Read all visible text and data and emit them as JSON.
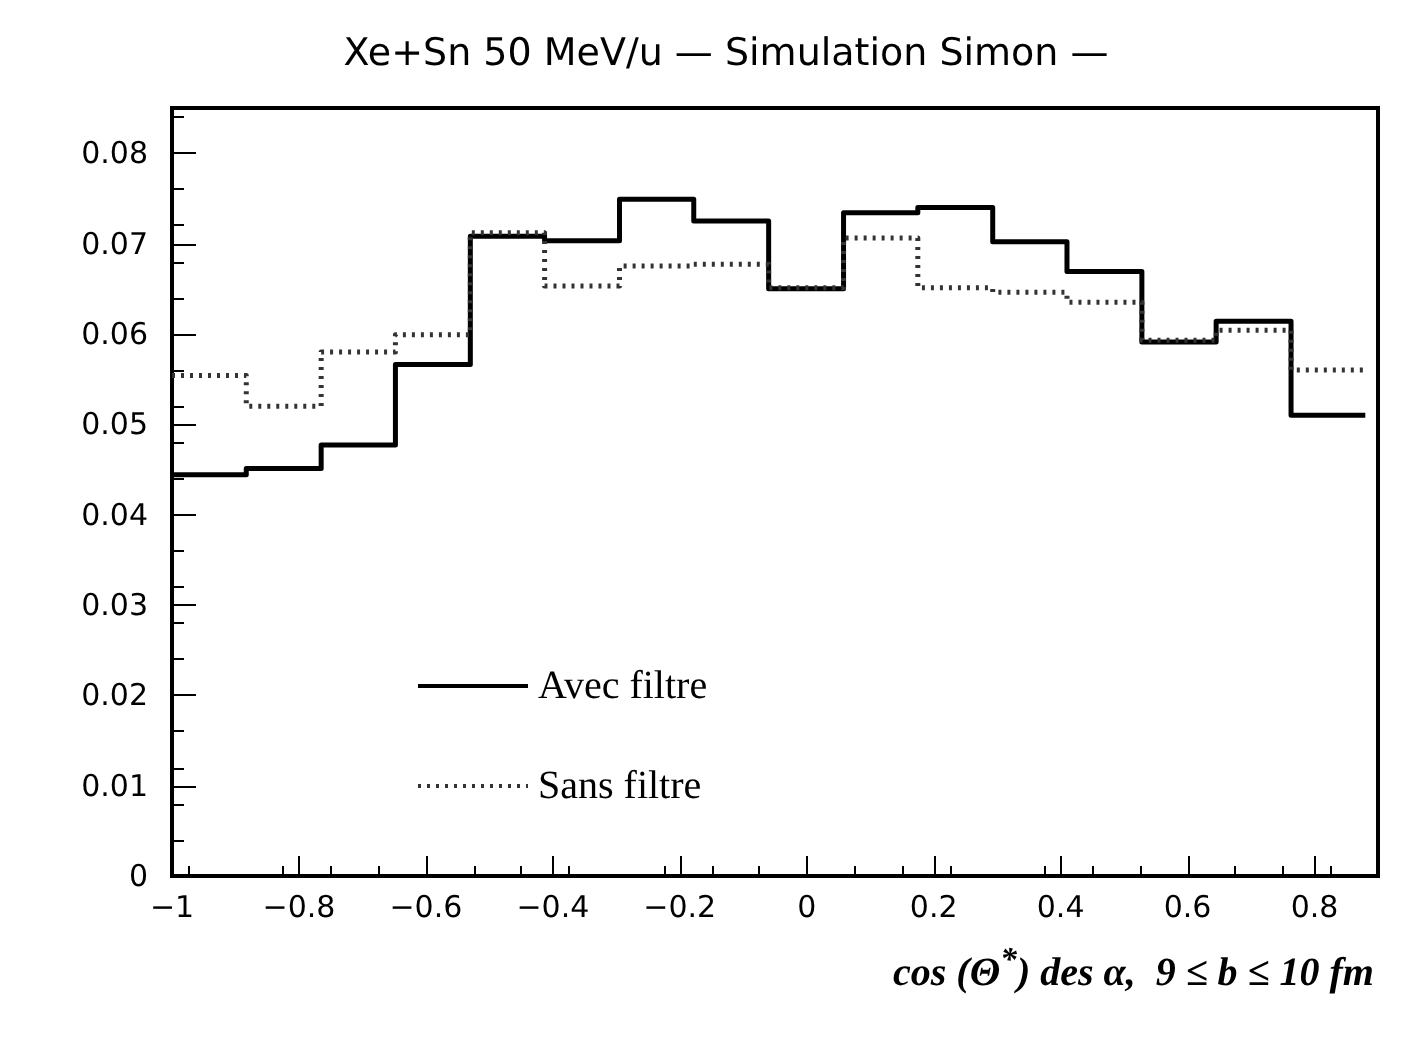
{
  "chart_data": {
    "type": "histogram",
    "title": "Xe+Sn 50 MeV/u — Simulation Simon —",
    "xlabel": "cos (Θ$^{*}$) des α,  9 ≤ b ≤ 10 fm",
    "bins": [
      -1,
      -0.883,
      -0.765,
      -0.648,
      -0.53,
      -0.413,
      -0.295,
      -0.178,
      -0.06,
      0.058,
      0.175,
      0.293,
      0.41,
      0.528,
      0.645,
      0.763,
      0.88
    ],
    "series": [
      {
        "name": "Avec filtre",
        "color": "#000000",
        "line_style": "solid",
        "values": [
          0.0444,
          0.0451,
          0.0477,
          0.0566,
          0.0708,
          0.0703,
          0.0749,
          0.0725,
          0.065,
          0.0734,
          0.074,
          0.0702,
          0.0669,
          0.0591,
          0.0614,
          0.051
        ]
      },
      {
        "name": "Sans filtre",
        "color": "#333333",
        "line_style": "dotted",
        "values": [
          0.0554,
          0.052,
          0.058,
          0.0599,
          0.0712,
          0.0653,
          0.0675,
          0.0677,
          0.0651,
          0.0706,
          0.0651,
          0.0646,
          0.0635,
          0.0593,
          0.0604,
          0.056
        ]
      }
    ],
    "xlim": [
      -1,
      0.9
    ],
    "xticks": [
      -1,
      -0.8,
      -0.6,
      -0.4,
      -0.2,
      0,
      0.2,
      0.4,
      0.6,
      0.8
    ],
    "ylim": [
      0,
      0.085
    ],
    "yticks": [
      0,
      0.01,
      0.02,
      0.03,
      0.04,
      0.05,
      0.06,
      0.07,
      0.08
    ],
    "grid": false,
    "legend": "bottom left"
  }
}
